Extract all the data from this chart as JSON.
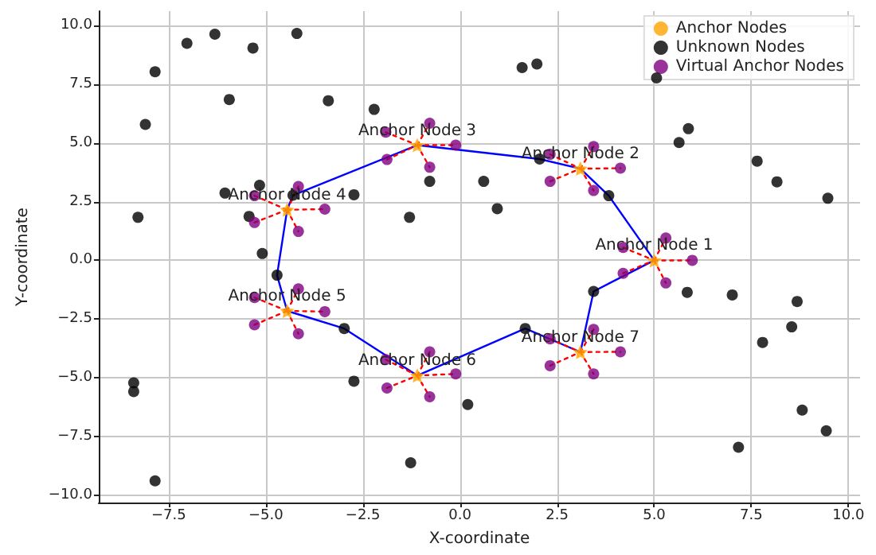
{
  "chart_data": {
    "type": "scatter",
    "xlabel": "X-coordinate",
    "ylabel": "Y-coordinate",
    "xlim": [
      -9.3,
      10.3
    ],
    "ylim": [
      -10.3,
      10.6
    ],
    "xticks": [
      {
        "value": -7.5,
        "label": "−7.5"
      },
      {
        "value": -5,
        "label": "−5.0"
      },
      {
        "value": -2.5,
        "label": "−2.5"
      },
      {
        "value": 0,
        "label": "0.0"
      },
      {
        "value": 2.5,
        "label": "2.5"
      },
      {
        "value": 5,
        "label": "5.0"
      },
      {
        "value": 7.5,
        "label": "7.5"
      },
      {
        "value": 10,
        "label": "10.0"
      }
    ],
    "yticks": [
      {
        "value": -10,
        "label": "−10.0"
      },
      {
        "value": -7.5,
        "label": "−7.5"
      },
      {
        "value": -5,
        "label": "−5.0"
      },
      {
        "value": -2.5,
        "label": "−2.5"
      },
      {
        "value": 0,
        "label": "0.0"
      },
      {
        "value": 2.5,
        "label": "2.5"
      },
      {
        "value": 5,
        "label": "5.0"
      },
      {
        "value": 7.5,
        "label": "7.5"
      },
      {
        "value": 10,
        "label": "10.0"
      }
    ],
    "grid": true,
    "legend": "top right",
    "series": [
      {
        "type": "line",
        "color": "#0000ff",
        "marker": "none",
        "line_style": "solid",
        "x": [
          -4.71,
          -4.45,
          -4.3,
          -1.1,
          2.05,
          3.1,
          3.83,
          5.0
        ],
        "values": [
          -0.63,
          2.15,
          2.77,
          4.9,
          4.31,
          3.9,
          2.75,
          0.0
        ]
      },
      {
        "type": "line",
        "color": "#0000ff",
        "marker": "none",
        "line_style": "solid",
        "x": [
          -4.71,
          -4.45,
          -2.98,
          -1.1,
          1.68,
          3.1,
          3.44,
          5.0
        ],
        "values": [
          -0.63,
          -2.15,
          -2.9,
          -4.9,
          -2.9,
          -3.9,
          -1.32,
          0.0
        ]
      },
      {
        "type": "line",
        "color": "#ff0000",
        "marker": "none",
        "line_style": "dotted",
        "x": [
          5.0,
          5.3
        ],
        "values": [
          0.0,
          0.95
        ]
      },
      {
        "type": "line",
        "color": "#ff0000",
        "marker": "none",
        "line_style": "dotted",
        "x": [
          4.2,
          5.0
        ],
        "values": [
          0.55,
          0.0
        ]
      },
      {
        "type": "line",
        "color": "#ff0000",
        "marker": "none",
        "line_style": "dotted",
        "x": [
          5.0,
          5.98
        ],
        "values": [
          0.0,
          0.0
        ]
      },
      {
        "type": "line",
        "color": "#ff0000",
        "marker": "none",
        "line_style": "dotted",
        "x": [
          4.2,
          5.0
        ],
        "values": [
          -0.55,
          0.0
        ]
      },
      {
        "type": "line",
        "color": "#ff0000",
        "marker": "none",
        "line_style": "dotted",
        "x": [
          5.0,
          5.3
        ],
        "values": [
          0.0,
          -0.96
        ]
      },
      {
        "type": "line",
        "color": "#ff0000",
        "marker": "none",
        "line_style": "dotted",
        "x": [
          2.32,
          3.1
        ],
        "values": [
          4.51,
          3.9
        ]
      },
      {
        "type": "line",
        "color": "#ff0000",
        "marker": "none",
        "line_style": "dotted",
        "x": [
          3.1,
          3.44
        ],
        "values": [
          3.9,
          4.84
        ]
      },
      {
        "type": "line",
        "color": "#ff0000",
        "marker": "none",
        "line_style": "dotted",
        "x": [
          3.1,
          4.13
        ],
        "values": [
          3.9,
          3.92
        ]
      },
      {
        "type": "line",
        "color": "#ff0000",
        "marker": "none",
        "line_style": "dotted",
        "x": [
          2.32,
          3.1
        ],
        "values": [
          3.36,
          3.9
        ]
      },
      {
        "type": "line",
        "color": "#ff0000",
        "marker": "none",
        "line_style": "dotted",
        "x": [
          3.1,
          3.44
        ],
        "values": [
          3.9,
          2.97
        ]
      },
      {
        "type": "line",
        "color": "#ff0000",
        "marker": "none",
        "line_style": "dotted",
        "x": [
          -1.91,
          -1.1
        ],
        "values": [
          5.45,
          4.9
        ]
      },
      {
        "type": "line",
        "color": "#ff0000",
        "marker": "none",
        "line_style": "dotted",
        "x": [
          -1.1,
          -0.78
        ],
        "values": [
          4.9,
          5.83
        ]
      },
      {
        "type": "line",
        "color": "#ff0000",
        "marker": "none",
        "line_style": "dotted",
        "x": [
          -1.1,
          -0.11
        ],
        "values": [
          4.9,
          4.9
        ]
      },
      {
        "type": "line",
        "color": "#ff0000",
        "marker": "none",
        "line_style": "dotted",
        "x": [
          -1.88,
          -1.1
        ],
        "values": [
          4.29,
          4.9
        ]
      },
      {
        "type": "line",
        "color": "#ff0000",
        "marker": "none",
        "line_style": "dotted",
        "x": [
          -1.1,
          -0.78
        ],
        "values": [
          4.9,
          3.96
        ]
      },
      {
        "type": "line",
        "color": "#ff0000",
        "marker": "none",
        "line_style": "dotted",
        "x": [
          -5.29,
          -4.45
        ],
        "values": [
          2.75,
          2.15
        ]
      },
      {
        "type": "line",
        "color": "#ff0000",
        "marker": "none",
        "line_style": "dotted",
        "x": [
          -4.45,
          -4.16
        ],
        "values": [
          2.15,
          3.14
        ]
      },
      {
        "type": "line",
        "color": "#ff0000",
        "marker": "none",
        "line_style": "dotted",
        "x": [
          -4.45,
          -3.48
        ],
        "values": [
          2.15,
          2.18
        ]
      },
      {
        "type": "line",
        "color": "#ff0000",
        "marker": "none",
        "line_style": "dotted",
        "x": [
          -5.29,
          -4.45
        ],
        "values": [
          1.61,
          2.15
        ]
      },
      {
        "type": "line",
        "color": "#ff0000",
        "marker": "none",
        "line_style": "dotted",
        "x": [
          -4.45,
          -4.16
        ],
        "values": [
          2.15,
          1.23
        ]
      },
      {
        "type": "line",
        "color": "#ff0000",
        "marker": "none",
        "line_style": "dotted",
        "x": [
          -5.29,
          -4.45
        ],
        "values": [
          -1.58,
          -2.15
        ]
      },
      {
        "type": "line",
        "color": "#ff0000",
        "marker": "none",
        "line_style": "dotted",
        "x": [
          -4.45,
          -4.16
        ],
        "values": [
          -2.15,
          -1.21
        ]
      },
      {
        "type": "line",
        "color": "#ff0000",
        "marker": "none",
        "line_style": "dotted",
        "x": [
          -4.45,
          -3.48
        ],
        "values": [
          -2.15,
          -2.18
        ]
      },
      {
        "type": "line",
        "color": "#ff0000",
        "marker": "none",
        "line_style": "dotted",
        "x": [
          -5.29,
          -4.45
        ],
        "values": [
          -2.74,
          -2.15
        ]
      },
      {
        "type": "line",
        "color": "#ff0000",
        "marker": "none",
        "line_style": "dotted",
        "x": [
          -4.45,
          -4.16
        ],
        "values": [
          -2.15,
          -3.12
        ]
      },
      {
        "type": "line",
        "color": "#ff0000",
        "marker": "none",
        "line_style": "dotted",
        "x": [
          -1.91,
          -1.1
        ],
        "values": [
          -4.22,
          -4.9
        ]
      },
      {
        "type": "line",
        "color": "#ff0000",
        "marker": "none",
        "line_style": "dotted",
        "x": [
          -1.1,
          -0.78
        ],
        "values": [
          -4.9,
          -3.89
        ]
      },
      {
        "type": "line",
        "color": "#ff0000",
        "marker": "none",
        "line_style": "dotted",
        "x": [
          -1.1,
          -0.11
        ],
        "values": [
          -4.9,
          -4.83
        ]
      },
      {
        "type": "line",
        "color": "#ff0000",
        "marker": "none",
        "line_style": "dotted",
        "x": [
          -1.88,
          -1.1
        ],
        "values": [
          -5.43,
          -4.9
        ]
      },
      {
        "type": "line",
        "color": "#ff0000",
        "marker": "none",
        "line_style": "dotted",
        "x": [
          -1.1,
          -0.78
        ],
        "values": [
          -4.9,
          -5.8
        ]
      },
      {
        "type": "line",
        "color": "#ff0000",
        "marker": "none",
        "line_style": "dotted",
        "x": [
          2.32,
          3.1
        ],
        "values": [
          -3.34,
          -3.9
        ]
      },
      {
        "type": "line",
        "color": "#ff0000",
        "marker": "none",
        "line_style": "dotted",
        "x": [
          3.1,
          3.44
        ],
        "values": [
          -3.9,
          -2.94
        ]
      },
      {
        "type": "line",
        "color": "#ff0000",
        "marker": "none",
        "line_style": "dotted",
        "x": [
          3.1,
          4.13
        ],
        "values": [
          -3.9,
          -3.89
        ]
      },
      {
        "type": "line",
        "color": "#ff0000",
        "marker": "none",
        "line_style": "dotted",
        "x": [
          2.32,
          3.1
        ],
        "values": [
          -4.48,
          -3.9
        ]
      },
      {
        "type": "line",
        "color": "#ff0000",
        "marker": "none",
        "line_style": "dotted",
        "x": [
          3.1,
          3.44
        ],
        "values": [
          -3.9,
          -4.83
        ]
      },
      {
        "type": "scatter",
        "name": "Anchor Nodes",
        "color": "#ffa500",
        "marker": "star",
        "x": [
          5.0,
          3.1,
          -1.1,
          -4.45,
          -4.45,
          -1.1,
          3.1
        ],
        "values": [
          0.0,
          3.9,
          4.9,
          2.15,
          -2.15,
          -4.9,
          -3.9
        ]
      },
      {
        "type": "scatter",
        "name": "Unknown Nodes",
        "color": "#000000",
        "marker": "circle",
        "x": [
          -7.85,
          -7.03,
          -6.31,
          -5.33,
          -4.2,
          -8.1,
          -5.94,
          -3.39,
          -2.21,
          -0.78,
          -6.05,
          -5.16,
          -4.3,
          -2.73,
          -1.3,
          -8.29,
          -5.43,
          -5.09,
          -4.71,
          1.6,
          1.98,
          5.06,
          5.88,
          5.64,
          2.05,
          7.65,
          8.16,
          9.47,
          0.61,
          0.96,
          3.83,
          3.44,
          5.85,
          7.01,
          8.68,
          8.54,
          7.79,
          1.68,
          0.2,
          8.81,
          9.43,
          7.17,
          -2.98,
          -2.73,
          -8.4,
          -8.4,
          -7.85,
          -1.27
        ],
        "values": [
          8.02,
          9.23,
          9.62,
          9.03,
          9.65,
          5.78,
          6.84,
          6.79,
          6.42,
          3.36,
          2.86,
          3.19,
          2.77,
          2.79,
          1.83,
          1.83,
          1.87,
          0.29,
          -0.63,
          8.2,
          8.35,
          7.76,
          5.6,
          5.01,
          4.31,
          4.22,
          3.34,
          2.64,
          3.36,
          2.2,
          2.75,
          -1.32,
          -1.36,
          -1.47,
          -1.75,
          -2.83,
          -3.49,
          -2.9,
          -6.13,
          -6.37,
          -7.25,
          -7.95,
          -2.9,
          -5.14,
          -5.21,
          -5.58,
          -9.38,
          -8.61
        ]
      },
      {
        "type": "scatter",
        "name": "Virtual Anchor Nodes",
        "color": "#800080",
        "marker": "circle",
        "x": [
          5.3,
          4.2,
          5.98,
          4.2,
          5.3,
          2.32,
          3.44,
          4.13,
          2.32,
          3.44,
          -1.91,
          -0.78,
          -0.11,
          -1.88,
          -0.78,
          -5.29,
          -4.16,
          -3.48,
          -5.29,
          -4.16,
          -5.29,
          -4.16,
          -3.48,
          -5.29,
          -4.16,
          -1.91,
          -0.78,
          -0.11,
          -1.88,
          -0.78,
          2.32,
          3.44,
          4.13,
          2.32,
          3.44
        ],
        "values": [
          0.95,
          0.55,
          0.0,
          -0.55,
          -0.96,
          4.51,
          4.84,
          3.92,
          3.36,
          2.97,
          5.45,
          5.83,
          4.9,
          4.29,
          3.96,
          2.75,
          3.14,
          2.18,
          1.61,
          1.23,
          -1.58,
          -1.21,
          -2.18,
          -2.74,
          -3.12,
          -4.22,
          -3.89,
          -4.83,
          -5.43,
          -5.8,
          -3.34,
          -2.94,
          -3.89,
          -4.48,
          -4.83
        ]
      }
    ],
    "annotations": [
      {
        "text": "Anchor Node 1",
        "x": 5.0,
        "y": 0.0
      },
      {
        "text": "Anchor Node 2",
        "x": 3.1,
        "y": 3.9
      },
      {
        "text": "Anchor Node 3",
        "x": -1.1,
        "y": 4.9
      },
      {
        "text": "Anchor Node 4",
        "x": -4.45,
        "y": 2.15
      },
      {
        "text": "Anchor Node 5",
        "x": -4.45,
        "y": -2.15
      },
      {
        "text": "Anchor Node 6",
        "x": -1.1,
        "y": -4.9
      },
      {
        "text": "Anchor Node 7",
        "x": 3.1,
        "y": -3.9
      }
    ]
  }
}
